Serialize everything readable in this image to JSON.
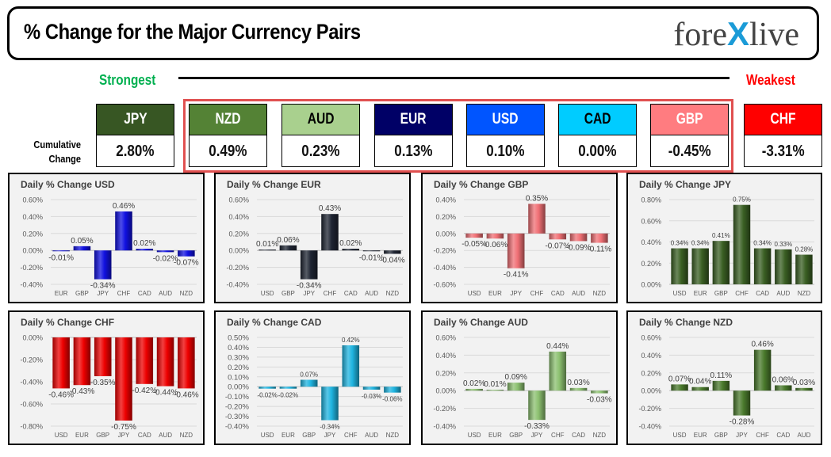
{
  "header": {
    "title": "% Change for the Major Currency Pairs",
    "logo_left": "fore",
    "logo_x": "X",
    "logo_right": "live"
  },
  "ranking": {
    "strongest_label": "Strongest",
    "weakest_label": "Weakest",
    "row_label_line1": "Cumulative",
    "row_label_line2": "Change",
    "currencies": [
      {
        "code": "JPY",
        "value": "2.80%",
        "bg": "#375623",
        "fg": "#ffffff"
      },
      {
        "code": "NZD",
        "value": "0.49%",
        "bg": "#548235",
        "fg": "#ffffff"
      },
      {
        "code": "AUD",
        "value": "0.23%",
        "bg": "#a9d08e",
        "fg": "#000000"
      },
      {
        "code": "EUR",
        "value": "0.13%",
        "bg": "#000066",
        "fg": "#ffffff"
      },
      {
        "code": "USD",
        "value": "0.10%",
        "bg": "#0055ff",
        "fg": "#ffffff"
      },
      {
        "code": "CAD",
        "value": "0.00%",
        "bg": "#00ccff",
        "fg": "#000000"
      },
      {
        "code": "GBP",
        "value": "-0.45%",
        "bg": "#ff7c80",
        "fg": "#ffffff"
      },
      {
        "code": "CHF",
        "value": "-3.31%",
        "bg": "#ff0000",
        "fg": "#ffffff"
      }
    ]
  },
  "chart_data": [
    {
      "type": "bar",
      "title": "Daily % Change USD",
      "categories": [
        "EUR",
        "GBP",
        "JPY",
        "CHF",
        "CAD",
        "AUD",
        "NZD"
      ],
      "values": [
        -0.01,
        0.05,
        -0.34,
        0.46,
        0.02,
        -0.02,
        -0.07
      ],
      "labels": [
        "-0.01%",
        "0.05%",
        "-0.34%",
        "0.46%",
        "0.02%",
        "-0.02%",
        "-0.07%"
      ],
      "yticks": [
        "0.60%",
        "0.40%",
        "0.20%",
        "0.00%",
        "-0.20%",
        "-0.40%"
      ],
      "ylim": [
        -0.4,
        0.6
      ],
      "step": 0.2,
      "color": "#1010e0",
      "grid": true
    },
    {
      "type": "bar",
      "title": "Daily % Change EUR",
      "categories": [
        "USD",
        "GBP",
        "JPY",
        "CHF",
        "CAD",
        "AUD",
        "NZD"
      ],
      "values": [
        0.01,
        0.06,
        -0.34,
        0.43,
        0.02,
        -0.01,
        -0.04
      ],
      "labels": [
        "0.01%",
        "0.06%",
        "-0.34%",
        "0.43%",
        "0.02%",
        "-0.01%",
        "-0.04%"
      ],
      "yticks": [
        "0.60%",
        "0.40%",
        "0.20%",
        "0.00%",
        "-0.20%",
        "-0.40%"
      ],
      "ylim": [
        -0.4,
        0.6
      ],
      "step": 0.2,
      "color": "#1f2533",
      "grid": true
    },
    {
      "type": "bar",
      "title": "Daily % Change GBP",
      "categories": [
        "USD",
        "EUR",
        "JPY",
        "CHF",
        "CAD",
        "AUD",
        "NZD"
      ],
      "values": [
        -0.05,
        -0.06,
        -0.41,
        0.35,
        -0.07,
        -0.09,
        -0.11
      ],
      "labels": [
        "-0.05%",
        "-0.06%",
        "-0.41%",
        "0.35%",
        "-0.07%",
        "-0.09%",
        "-0.11%"
      ],
      "yticks": [
        "0.40%",
        "0.20%",
        "0.00%",
        "-0.20%",
        "-0.40%",
        "-0.60%"
      ],
      "ylim": [
        -0.6,
        0.4
      ],
      "step": 0.2,
      "color": "#f07075",
      "grid": true
    },
    {
      "type": "bar",
      "title": "Daily % Change JPY",
      "categories": [
        "USD",
        "EUR",
        "GBP",
        "CHF",
        "CAD",
        "AUD",
        "NZD"
      ],
      "values": [
        0.34,
        0.34,
        0.41,
        0.75,
        0.34,
        0.33,
        0.28
      ],
      "labels": [
        "0.34%",
        "0.34%",
        "0.41%",
        "0.75%",
        "0.34%",
        "0.33%",
        "0.28%"
      ],
      "yticks": [
        "0.80%",
        "0.60%",
        "0.40%",
        "0.20%",
        "0.00%"
      ],
      "ylim": [
        0.0,
        0.8
      ],
      "step": 0.2,
      "color": "#3a5f23",
      "grid": true
    },
    {
      "type": "bar",
      "title": "Daily % Change CHF",
      "categories": [
        "USD",
        "EUR",
        "GBP",
        "JPY",
        "CAD",
        "AUD",
        "NZD"
      ],
      "values": [
        -0.46,
        -0.43,
        -0.35,
        -0.75,
        -0.42,
        -0.44,
        -0.46
      ],
      "labels": [
        "-0.46%",
        "-0.43%",
        "-0.35%",
        "-0.75%",
        "-0.42%",
        "-0.44%",
        "-0.46%"
      ],
      "yticks": [
        "0.00%",
        "-0.20%",
        "-0.40%",
        "-0.60%",
        "-0.80%"
      ],
      "ylim": [
        -0.8,
        0.0
      ],
      "step": 0.2,
      "color": "#ee0000",
      "grid": true
    },
    {
      "type": "bar",
      "title": "Daily % Change CAD",
      "categories": [
        "USD",
        "EUR",
        "GBP",
        "JPY",
        "CHF",
        "AUD",
        "NZD"
      ],
      "values": [
        -0.02,
        -0.02,
        0.07,
        -0.34,
        0.42,
        -0.03,
        -0.06
      ],
      "labels": [
        "-0.02%",
        "-0.02%",
        "0.07%",
        "-0.34%",
        "0.42%",
        "-0.03%",
        "-0.06%"
      ],
      "yticks": [
        "0.50%",
        "0.40%",
        "0.30%",
        "0.20%",
        "0.10%",
        "0.00%",
        "-0.10%",
        "-0.20%",
        "-0.30%",
        "-0.40%"
      ],
      "ylim": [
        -0.4,
        0.5
      ],
      "step": 0.1,
      "color": "#1fb4e0",
      "grid": true
    },
    {
      "type": "bar",
      "title": "Daily % Change AUD",
      "categories": [
        "USD",
        "EUR",
        "GBP",
        "JPY",
        "CHF",
        "CAD",
        "NZD"
      ],
      "values": [
        0.02,
        0.01,
        0.09,
        -0.33,
        0.44,
        0.03,
        -0.03
      ],
      "labels": [
        "0.02%",
        "0.01%",
        "0.09%",
        "-0.33%",
        "0.44%",
        "0.03%",
        "-0.03%"
      ],
      "yticks": [
        "0.60%",
        "0.40%",
        "0.20%",
        "0.00%",
        "-0.20%",
        "-0.40%"
      ],
      "ylim": [
        -0.4,
        0.6
      ],
      "step": 0.2,
      "color": "#8cc070",
      "grid": true
    },
    {
      "type": "bar",
      "title": "Daily % Change NZD",
      "categories": [
        "USD",
        "EUR",
        "GBP",
        "JPY",
        "CHF",
        "CAD",
        "AUD"
      ],
      "values": [
        0.07,
        0.04,
        0.11,
        -0.28,
        0.46,
        0.06,
        0.03
      ],
      "labels": [
        "0.07%",
        "0.04%",
        "0.11%",
        "-0.28%",
        "0.46%",
        "0.06%",
        "0.03%"
      ],
      "yticks": [
        "0.60%",
        "0.40%",
        "0.20%",
        "0.00%",
        "-0.20%",
        "-0.40%"
      ],
      "ylim": [
        -0.4,
        0.6
      ],
      "step": 0.2,
      "color": "#4a7a2c",
      "grid": true
    }
  ]
}
